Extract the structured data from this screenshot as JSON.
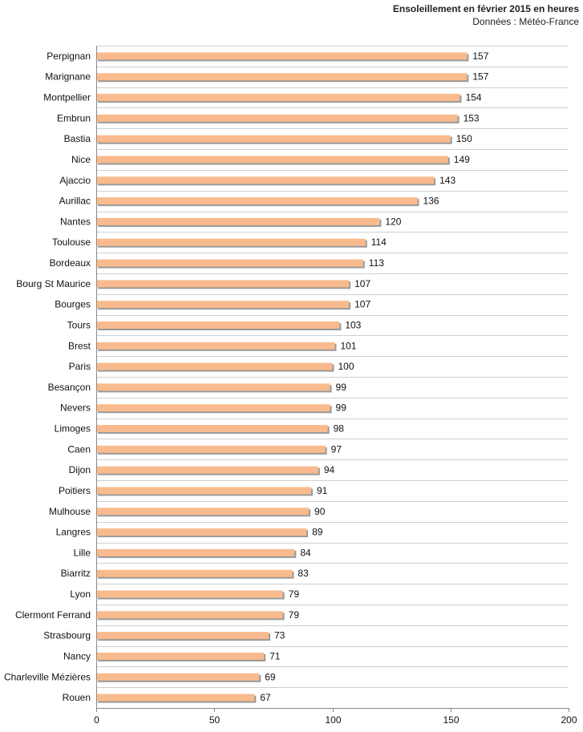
{
  "chart_data": {
    "type": "bar",
    "orientation": "horizontal",
    "title": "Ensoleillement en février 2015 en heures",
    "subtitle": "Données : Météo-France",
    "categories": [
      "Perpignan",
      "Marignane",
      "Montpellier",
      "Embrun",
      "Bastia",
      "Nice",
      "Ajaccio",
      "Aurillac",
      "Nantes",
      "Toulouse",
      "Bordeaux",
      "Bourg St Maurice",
      "Bourges",
      "Tours",
      "Brest",
      "Paris",
      "Besançon",
      "Nevers",
      "Limoges",
      "Caen",
      "Dijon",
      "Poitiers",
      "Mulhouse",
      "Langres",
      "Lille",
      "Biarritz",
      "Lyon",
      "Clermont Ferrand",
      "Strasbourg",
      "Nancy",
      "Charleville Mézières",
      "Rouen"
    ],
    "values": [
      157,
      157,
      154,
      153,
      150,
      149,
      143,
      136,
      120,
      114,
      113,
      107,
      107,
      103,
      101,
      100,
      99,
      99,
      98,
      97,
      94,
      91,
      90,
      89,
      84,
      83,
      79,
      79,
      73,
      71,
      69,
      67
    ],
    "xlim": [
      0,
      200
    ],
    "xticks": [
      0,
      50,
      100,
      150,
      200
    ],
    "xlabel": "",
    "ylabel": "",
    "grid": true,
    "colors": {
      "bar": "#f9bb8d",
      "shadow": "#9a9a9a",
      "grid": "#cfcfcf",
      "axis": "#888888"
    }
  }
}
